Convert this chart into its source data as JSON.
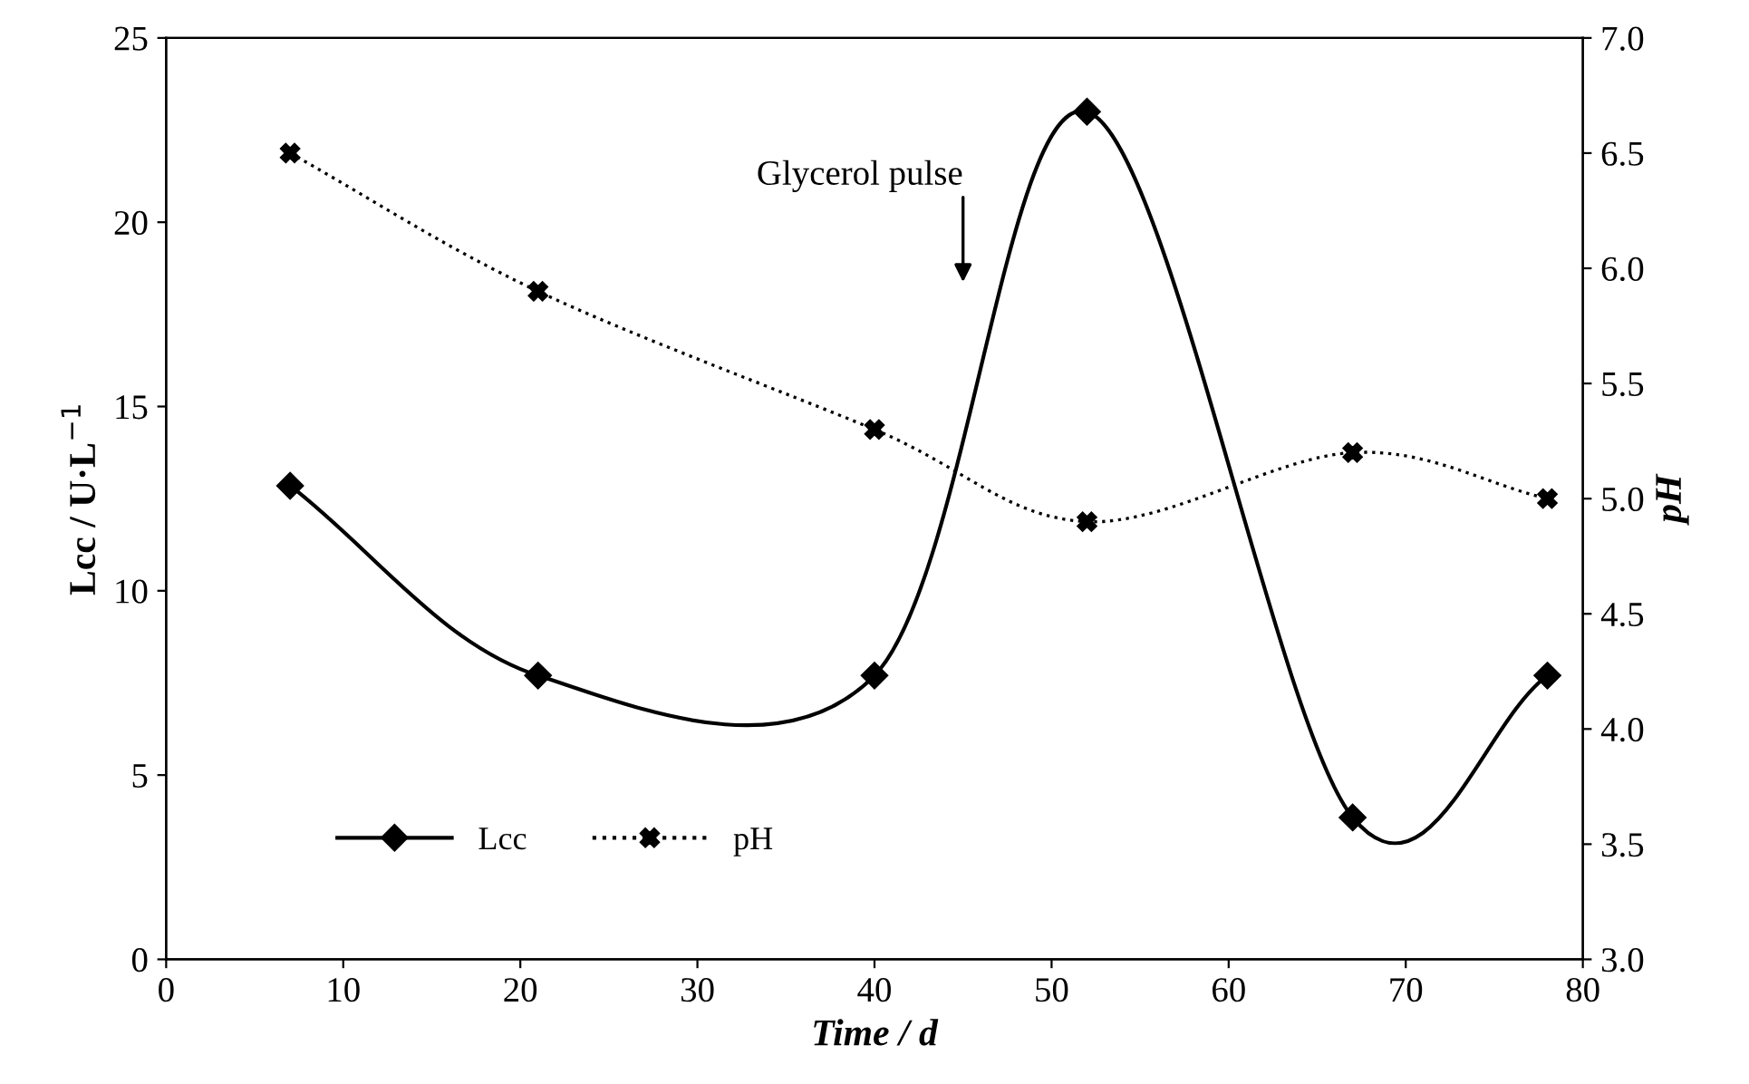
{
  "chart_data": {
    "type": "line",
    "xlabel": "Time / d",
    "ylabel": "Lcc / U·L$^{−1}$",
    "y2label": "pH",
    "x": [
      7,
      21,
      40,
      52,
      67,
      78
    ],
    "series": [
      {
        "name": "Lcc",
        "color": "#000000",
        "values": [
          12.85,
          7.7,
          7.7,
          23.0,
          3.85,
          7.7
        ],
        "marker": "diamond",
        "line_style": "solid"
      },
      {
        "name": "pH",
        "color": "#000000",
        "values": [
          6.5,
          5.9,
          5.3,
          4.9,
          5.2,
          5.0
        ],
        "marker": "cross",
        "line_style": "dotted",
        "axis": "y2"
      }
    ],
    "annotations": [
      "Glycerol pulse"
    ],
    "xlim": [
      0,
      80
    ],
    "xticks": [
      0,
      10,
      20,
      30,
      40,
      50,
      60,
      70,
      80
    ],
    "ylim": [
      0,
      25
    ],
    "yticks": [
      0,
      5,
      10,
      15,
      20,
      25
    ],
    "y2lim": [
      3,
      7
    ],
    "y2ticks": [
      {
        "value": 3,
        "label": "3.0"
      },
      {
        "value": 3.5,
        "label": "3.5"
      },
      {
        "value": 4,
        "label": "4.0"
      },
      {
        "value": 4.5,
        "label": "4.5"
      },
      {
        "value": 5,
        "label": "5.0"
      },
      {
        "value": 5.5,
        "label": "5.5"
      },
      {
        "value": 6,
        "label": "6.0"
      },
      {
        "value": 6.5,
        "label": "6.5"
      },
      {
        "value": 7,
        "label": "7.0"
      }
    ],
    "grid": false,
    "legend": "bottom left"
  }
}
